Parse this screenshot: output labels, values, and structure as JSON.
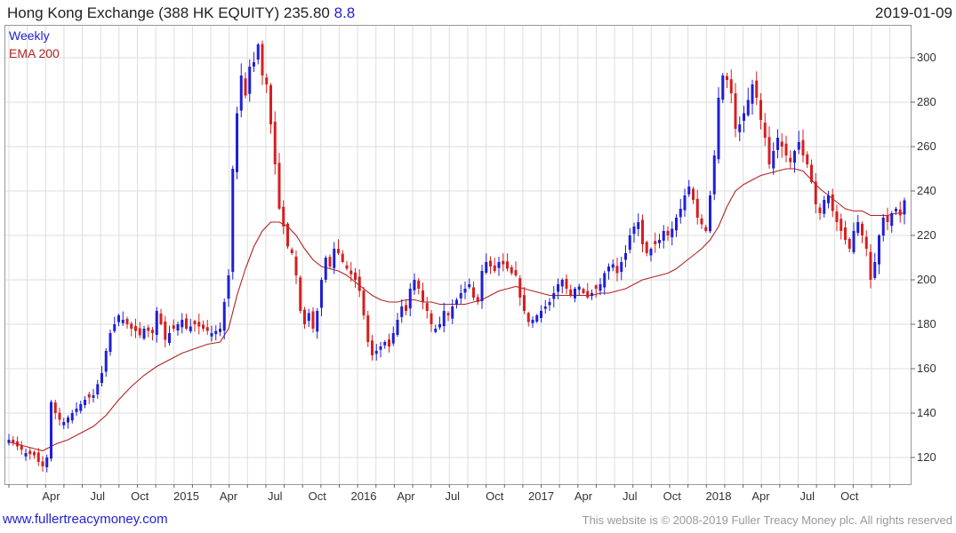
{
  "header": {
    "title_main": "Hong Kong Exchange (388 HK EQUITY) 235.80",
    "change": "8.8",
    "date": "2019-01-09"
  },
  "footer": {
    "site": "www.fullertreacymoney.com",
    "copyright": "This website is © 2008-2019 Fuller Treacy Money plc. All rights reserved"
  },
  "colors": {
    "up": "#1f1fd6",
    "down": "#d61f1f",
    "ema": "#b22222",
    "grid": "#dddddd",
    "title_change": "#1f1fd6"
  },
  "chart_data": {
    "type": "candlestick",
    "legend": [
      {
        "label": "Weekly",
        "color": "#1f1fd6"
      },
      {
        "label": "EMA 200",
        "color": "#b22222"
      }
    ],
    "legend_position": "top-left",
    "grid": true,
    "y_axis_side": "right",
    "ylim": [
      108,
      312
    ],
    "yticks": [
      120,
      140,
      160,
      180,
      200,
      220,
      240,
      260,
      280,
      300
    ],
    "xlim": [
      0,
      212
    ],
    "xticks": [
      {
        "label": "Apr",
        "week": 10
      },
      {
        "label": "Jul",
        "week": 21
      },
      {
        "label": "Oct",
        "week": 31
      },
      {
        "label": "2015",
        "week": 42
      },
      {
        "label": "Apr",
        "week": 52
      },
      {
        "label": "Jul",
        "week": 63
      },
      {
        "label": "Oct",
        "week": 73
      },
      {
        "label": "2016",
        "week": 84
      },
      {
        "label": "Apr",
        "week": 94
      },
      {
        "label": "Jul",
        "week": 105
      },
      {
        "label": "Oct",
        "week": 115
      },
      {
        "label": "2017",
        "week": 126
      },
      {
        "label": "Apr",
        "week": 136
      },
      {
        "label": "Jul",
        "week": 147
      },
      {
        "label": "Oct",
        "week": 157
      },
      {
        "label": "2018",
        "week": 168
      },
      {
        "label": "Apr",
        "week": 178
      },
      {
        "label": "Jul",
        "week": 189
      },
      {
        "label": "Oct",
        "week": 199
      }
    ],
    "weekly_close": [
      [
        0,
        128
      ],
      [
        2,
        125
      ],
      [
        4,
        122
      ],
      [
        6,
        121
      ],
      [
        7,
        118
      ],
      [
        8,
        116
      ],
      [
        9,
        120
      ],
      [
        10,
        145
      ],
      [
        11,
        140
      ],
      [
        12,
        137
      ],
      [
        13,
        136
      ],
      [
        14,
        138
      ],
      [
        16,
        142
      ],
      [
        18,
        146
      ],
      [
        20,
        148
      ],
      [
        22,
        158
      ],
      [
        23,
        168
      ],
      [
        24,
        176
      ],
      [
        25,
        180
      ],
      [
        26,
        184
      ],
      [
        27,
        182
      ],
      [
        28,
        180
      ],
      [
        29,
        178
      ],
      [
        30,
        177
      ],
      [
        31,
        175
      ],
      [
        32,
        178
      ],
      [
        34,
        176
      ],
      [
        35,
        186
      ],
      [
        36,
        180
      ],
      [
        37,
        173
      ],
      [
        38,
        176
      ],
      [
        40,
        180
      ],
      [
        41,
        182
      ],
      [
        42,
        178
      ],
      [
        44,
        180
      ],
      [
        46,
        178
      ],
      [
        48,
        176
      ],
      [
        50,
        178
      ],
      [
        51,
        190
      ],
      [
        52,
        202
      ],
      [
        53,
        250
      ],
      [
        54,
        275
      ],
      [
        55,
        292
      ],
      [
        56,
        283
      ],
      [
        57,
        296
      ],
      [
        58,
        298
      ],
      [
        59,
        306
      ],
      [
        60,
        292
      ],
      [
        61,
        288
      ],
      [
        62,
        270
      ],
      [
        63,
        252
      ],
      [
        64,
        232
      ],
      [
        65,
        224
      ],
      [
        66,
        215
      ],
      [
        67,
        212
      ],
      [
        68,
        202
      ],
      [
        69,
        186
      ],
      [
        70,
        180
      ],
      [
        71,
        185
      ],
      [
        72,
        178
      ],
      [
        73,
        186
      ],
      [
        74,
        200
      ],
      [
        75,
        210
      ],
      [
        76,
        206
      ],
      [
        77,
        214
      ],
      [
        78,
        212
      ],
      [
        79,
        208
      ],
      [
        80,
        205
      ],
      [
        82,
        200
      ],
      [
        83,
        195
      ],
      [
        84,
        184
      ],
      [
        85,
        172
      ],
      [
        86,
        166
      ],
      [
        87,
        168
      ],
      [
        88,
        170
      ],
      [
        89,
        172
      ],
      [
        90,
        170
      ],
      [
        91,
        176
      ],
      [
        92,
        182
      ],
      [
        93,
        188
      ],
      [
        94,
        186
      ],
      [
        95,
        196
      ],
      [
        96,
        200
      ],
      [
        97,
        196
      ],
      [
        98,
        190
      ],
      [
        99,
        186
      ],
      [
        100,
        180
      ],
      [
        101,
        178
      ],
      [
        102,
        180
      ],
      [
        103,
        186
      ],
      [
        104,
        184
      ],
      [
        105,
        188
      ],
      [
        106,
        191
      ],
      [
        107,
        194
      ],
      [
        108,
        196
      ],
      [
        109,
        198
      ],
      [
        110,
        192
      ],
      [
        111,
        190
      ],
      [
        112,
        204
      ],
      [
        113,
        208
      ],
      [
        114,
        206
      ],
      [
        115,
        204
      ],
      [
        116,
        208
      ],
      [
        117,
        207
      ],
      [
        118,
        205
      ],
      [
        119,
        203
      ],
      [
        120,
        202
      ],
      [
        121,
        192
      ],
      [
        122,
        186
      ],
      [
        123,
        181
      ],
      [
        124,
        182
      ],
      [
        125,
        184
      ],
      [
        126,
        186
      ],
      [
        127,
        188
      ],
      [
        128,
        190
      ],
      [
        129,
        194
      ],
      [
        130,
        198
      ],
      [
        131,
        200
      ],
      [
        132,
        196
      ],
      [
        133,
        193
      ],
      [
        134,
        196
      ],
      [
        135,
        197
      ],
      [
        136,
        194
      ],
      [
        137,
        192
      ],
      [
        138,
        194
      ],
      [
        139,
        196
      ],
      [
        140,
        198
      ],
      [
        141,
        203
      ],
      [
        142,
        206
      ],
      [
        143,
        207
      ],
      [
        144,
        203
      ],
      [
        145,
        208
      ],
      [
        146,
        212
      ],
      [
        147,
        220
      ],
      [
        148,
        224
      ],
      [
        149,
        226
      ],
      [
        150,
        216
      ],
      [
        151,
        212
      ],
      [
        152,
        214
      ],
      [
        153,
        216
      ],
      [
        154,
        218
      ],
      [
        155,
        222
      ],
      [
        156,
        220
      ],
      [
        157,
        223
      ],
      [
        158,
        228
      ],
      [
        159,
        232
      ],
      [
        160,
        238
      ],
      [
        161,
        242
      ],
      [
        162,
        236
      ],
      [
        163,
        228
      ],
      [
        164,
        225
      ],
      [
        165,
        222
      ],
      [
        166,
        238
      ],
      [
        167,
        256
      ],
      [
        168,
        282
      ],
      [
        169,
        292
      ],
      [
        170,
        290
      ],
      [
        171,
        284
      ],
      [
        172,
        268
      ],
      [
        173,
        270
      ],
      [
        174,
        275
      ],
      [
        175,
        281
      ],
      [
        176,
        288
      ],
      [
        177,
        282
      ],
      [
        178,
        272
      ],
      [
        179,
        264
      ],
      [
        180,
        252
      ],
      [
        181,
        258
      ],
      [
        182,
        264
      ],
      [
        183,
        260
      ],
      [
        184,
        256
      ],
      [
        185,
        253
      ],
      [
        186,
        258
      ],
      [
        187,
        262
      ],
      [
        188,
        256
      ],
      [
        189,
        252
      ],
      [
        190,
        244
      ],
      [
        191,
        234
      ],
      [
        192,
        230
      ],
      [
        193,
        236
      ],
      [
        194,
        238
      ],
      [
        195,
        231
      ],
      [
        196,
        226
      ],
      [
        197,
        222
      ],
      [
        198,
        218
      ],
      [
        199,
        214
      ],
      [
        200,
        222
      ],
      [
        201,
        226
      ],
      [
        202,
        220
      ],
      [
        203,
        214
      ],
      [
        204,
        200
      ],
      [
        205,
        208
      ],
      [
        206,
        220
      ],
      [
        207,
        228
      ],
      [
        208,
        226
      ],
      [
        209,
        230
      ],
      [
        210,
        232
      ],
      [
        211,
        229
      ],
      [
        212,
        235.8
      ]
    ],
    "ema_200": [
      [
        0,
        127
      ],
      [
        2,
        126
      ],
      [
        4,
        125
      ],
      [
        6,
        124
      ],
      [
        8,
        123
      ],
      [
        9,
        124
      ],
      [
        11,
        126
      ],
      [
        14,
        128
      ],
      [
        17,
        131
      ],
      [
        20,
        134
      ],
      [
        23,
        139
      ],
      [
        26,
        146
      ],
      [
        29,
        152
      ],
      [
        32,
        157
      ],
      [
        35,
        161
      ],
      [
        38,
        164
      ],
      [
        41,
        167
      ],
      [
        44,
        169
      ],
      [
        47,
        171
      ],
      [
        50,
        172
      ],
      [
        52,
        178
      ],
      [
        54,
        193
      ],
      [
        56,
        205
      ],
      [
        58,
        215
      ],
      [
        60,
        222
      ],
      [
        62,
        226
      ],
      [
        64,
        226
      ],
      [
        66,
        224
      ],
      [
        68,
        220
      ],
      [
        70,
        214
      ],
      [
        72,
        209
      ],
      [
        74,
        206
      ],
      [
        76,
        205
      ],
      [
        78,
        204
      ],
      [
        80,
        202
      ],
      [
        82,
        199
      ],
      [
        84,
        196
      ],
      [
        86,
        193
      ],
      [
        88,
        191
      ],
      [
        90,
        190
      ],
      [
        92,
        190
      ],
      [
        94,
        191
      ],
      [
        96,
        191
      ],
      [
        98,
        190
      ],
      [
        100,
        190
      ],
      [
        102,
        189
      ],
      [
        104,
        189
      ],
      [
        106,
        189
      ],
      [
        108,
        189
      ],
      [
        110,
        190
      ],
      [
        112,
        191
      ],
      [
        114,
        193
      ],
      [
        116,
        195
      ],
      [
        118,
        196
      ],
      [
        120,
        197
      ],
      [
        122,
        196
      ],
      [
        124,
        195
      ],
      [
        126,
        194
      ],
      [
        128,
        193
      ],
      [
        130,
        193
      ],
      [
        132,
        193
      ],
      [
        134,
        193
      ],
      [
        136,
        193
      ],
      [
        138,
        193
      ],
      [
        140,
        194
      ],
      [
        142,
        194
      ],
      [
        144,
        195
      ],
      [
        146,
        196
      ],
      [
        148,
        198
      ],
      [
        150,
        200
      ],
      [
        152,
        201
      ],
      [
        154,
        202
      ],
      [
        156,
        203
      ],
      [
        158,
        205
      ],
      [
        160,
        208
      ],
      [
        162,
        211
      ],
      [
        164,
        214
      ],
      [
        166,
        218
      ],
      [
        168,
        224
      ],
      [
        170,
        233
      ],
      [
        172,
        240
      ],
      [
        174,
        243
      ],
      [
        176,
        245
      ],
      [
        178,
        247
      ],
      [
        180,
        248
      ],
      [
        182,
        249
      ],
      [
        184,
        250
      ],
      [
        186,
        250
      ],
      [
        188,
        249
      ],
      [
        190,
        245
      ],
      [
        192,
        241
      ],
      [
        194,
        238
      ],
      [
        196,
        235
      ],
      [
        198,
        232
      ],
      [
        200,
        231
      ],
      [
        202,
        231
      ],
      [
        204,
        229
      ],
      [
        206,
        229
      ],
      [
        208,
        229
      ],
      [
        210,
        230
      ],
      [
        212,
        230
      ]
    ]
  }
}
